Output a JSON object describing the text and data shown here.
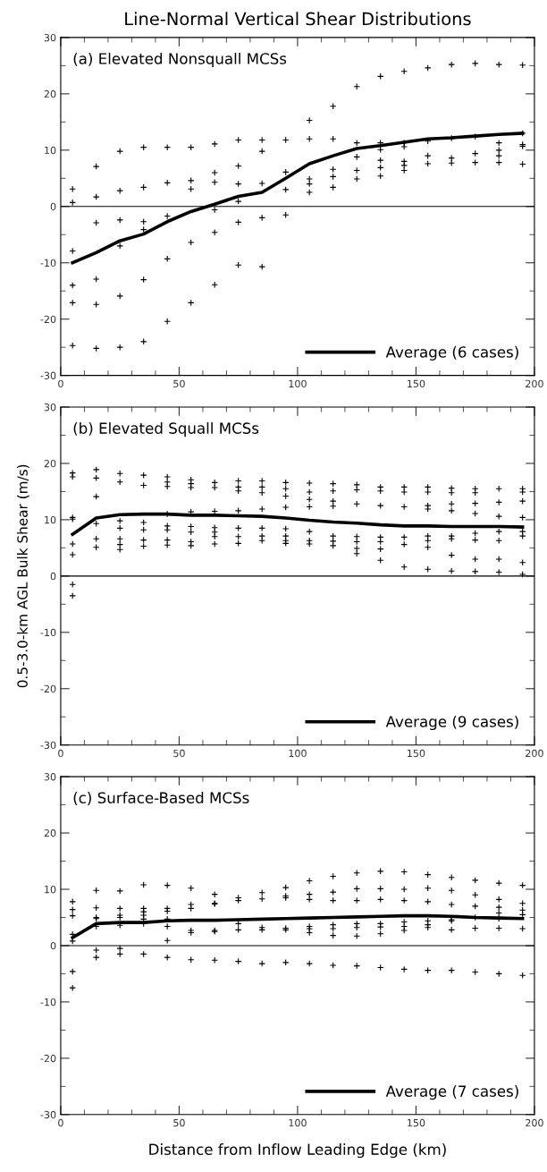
{
  "chart_data": [
    {
      "type": "scatter",
      "title": "Line-Normal Vertical Shear Distributions",
      "annotations": [
        "(a) Elevated Nonsquall MCSs"
      ],
      "xlim": [
        0,
        200
      ],
      "xticks": [
        0,
        50,
        100,
        150,
        200
      ],
      "ylim": [
        -30,
        30
      ],
      "yticks": [
        -30,
        -20,
        -10,
        0,
        10,
        20,
        30
      ],
      "grid": false,
      "legend": "bottom right",
      "ref_lines": [
        {
          "axis": "y",
          "value": 0,
          "color": "#000000"
        }
      ],
      "series": [
        {
          "color": "#000000",
          "marker": "cross",
          "x": [
            5,
            5,
            5,
            5,
            5,
            5,
            15,
            15,
            15,
            15,
            15,
            15,
            25,
            25,
            25,
            25,
            25,
            25,
            35,
            35,
            35,
            35,
            35,
            35,
            45,
            45,
            45,
            45,
            45,
            55,
            55,
            55,
            55,
            55,
            65,
            65,
            65,
            65,
            65,
            65,
            75,
            75,
            75,
            75,
            75,
            75,
            85,
            85,
            85,
            85,
            85,
            95,
            95,
            95,
            95,
            105,
            105,
            105,
            105,
            105,
            115,
            115,
            115,
            115,
            115,
            125,
            125,
            125,
            125,
            125,
            135,
            135,
            135,
            135,
            135,
            135,
            145,
            145,
            145,
            145,
            145,
            145,
            155,
            155,
            155,
            155,
            165,
            165,
            165,
            165,
            175,
            175,
            175,
            175,
            185,
            185,
            185,
            185,
            185,
            195,
            195,
            195,
            195,
            195
          ],
          "values": [
            3.1,
            0.7,
            -7.9,
            -14.0,
            -17.1,
            -24.7,
            7.1,
            1.7,
            -2.9,
            -12.9,
            -17.4,
            -25.2,
            9.8,
            2.8,
            -2.4,
            -7.0,
            -15.9,
            -25.0,
            10.5,
            3.4,
            -2.7,
            -4.1,
            -13.0,
            -24.0,
            10.5,
            4.2,
            -1.7,
            -9.3,
            -20.4,
            10.5,
            4.6,
            3.1,
            -6.4,
            -17.1,
            11.1,
            6.0,
            4.3,
            -0.6,
            -4.6,
            -13.9,
            11.8,
            7.2,
            4.0,
            0.9,
            -2.8,
            -10.4,
            11.8,
            9.8,
            4.1,
            -2.0,
            -10.7,
            11.8,
            6.1,
            3.0,
            -1.5,
            15.3,
            12.0,
            4.9,
            4.0,
            2.5,
            17.8,
            12.0,
            6.6,
            5.3,
            3.4,
            21.3,
            11.3,
            8.8,
            6.4,
            4.9,
            23.1,
            11.3,
            10.1,
            8.2,
            6.9,
            5.4,
            24.0,
            11.3,
            10.6,
            8.0,
            7.3,
            6.4,
            24.6,
            11.6,
            9.0,
            7.6,
            25.2,
            12.1,
            8.6,
            7.7,
            25.4,
            12.4,
            9.4,
            7.8,
            25.2,
            11.3,
            10.0,
            9.0,
            7.8,
            25.1,
            13.0,
            11.0,
            10.7,
            7.5
          ]
        },
        {
          "type": "line",
          "name": "Average (6 cases)",
          "color": "#000000",
          "line_style": "solid",
          "x": [
            5,
            15,
            25,
            35,
            45,
            55,
            65,
            75,
            85,
            95,
            105,
            115,
            125,
            135,
            145,
            155,
            165,
            175,
            185,
            195
          ],
          "values": [
            -10.0,
            -8.2,
            -6.1,
            -4.9,
            -2.7,
            -0.9,
            0.4,
            1.8,
            2.5,
            5.0,
            7.6,
            9.0,
            10.3,
            10.8,
            11.4,
            12.0,
            12.2,
            12.5,
            12.8,
            13.0
          ]
        }
      ]
    },
    {
      "type": "scatter",
      "ylabel": "0.5-3.0-km AGL Bulk Shear (m/s)",
      "annotations": [
        "(b) Elevated Squall MCSs"
      ],
      "xlim": [
        0,
        200
      ],
      "xticks": [
        0,
        50,
        100,
        150,
        200
      ],
      "ylim": [
        -30,
        30
      ],
      "yticks": [
        -30,
        -20,
        -10,
        0,
        10,
        20,
        30
      ],
      "grid": false,
      "legend": "bottom right",
      "ref_lines": [
        {
          "axis": "y",
          "value": 0,
          "color": "#000000"
        }
      ],
      "series": [
        {
          "color": "#000000",
          "marker": "cross",
          "x": [
            5,
            5,
            5,
            5,
            5,
            5,
            5,
            5,
            15,
            15,
            15,
            15,
            15,
            15,
            25,
            25,
            25,
            25,
            25,
            25,
            25,
            35,
            35,
            35,
            35,
            35,
            35,
            45,
            45,
            45,
            45,
            45,
            45,
            45,
            45,
            55,
            55,
            55,
            55,
            55,
            55,
            55,
            55,
            65,
            65,
            65,
            65,
            65,
            65,
            65,
            75,
            75,
            75,
            75,
            75,
            75,
            75,
            85,
            85,
            85,
            85,
            85,
            85,
            85,
            95,
            95,
            95,
            95,
            95,
            95,
            95,
            95,
            105,
            105,
            105,
            105,
            105,
            105,
            105,
            115,
            115,
            115,
            115,
            115,
            115,
            115,
            125,
            125,
            125,
            125,
            125,
            125,
            125,
            135,
            135,
            135,
            135,
            135,
            135,
            135,
            145,
            145,
            145,
            145,
            145,
            145,
            155,
            155,
            155,
            155,
            155,
            155,
            155,
            155,
            165,
            165,
            165,
            165,
            165,
            165,
            165,
            165,
            175,
            175,
            175,
            175,
            175,
            175,
            175,
            175,
            185,
            185,
            185,
            185,
            185,
            185,
            185,
            195,
            195,
            195,
            195,
            195,
            195,
            195,
            195
          ],
          "values": [
            18.3,
            17.6,
            10.4,
            10.1,
            5.7,
            3.8,
            -1.5,
            -3.5,
            18.9,
            17.4,
            14.1,
            9.3,
            6.6,
            5.1,
            18.2,
            16.7,
            9.8,
            8.5,
            6.6,
            5.6,
            4.7,
            17.9,
            16.1,
            9.5,
            8.2,
            6.4,
            5.3,
            17.6,
            16.7,
            15.9,
            11.0,
            8.9,
            8.2,
            6.4,
            5.5,
            17.1,
            16.4,
            15.7,
            11.4,
            8.8,
            7.8,
            6.1,
            5.4,
            16.6,
            15.7,
            11.5,
            8.6,
            7.8,
            7.0,
            5.7,
            16.9,
            15.8,
            15.1,
            11.6,
            8.5,
            7.0,
            5.8,
            16.9,
            15.8,
            14.8,
            11.9,
            8.5,
            7.1,
            6.3,
            16.6,
            15.5,
            14.2,
            12.2,
            8.4,
            7.1,
            6.3,
            5.8,
            16.5,
            14.9,
            13.6,
            12.3,
            7.9,
            6.3,
            5.7,
            16.4,
            15.1,
            13.3,
            12.4,
            7.1,
            6.2,
            5.4,
            16.2,
            15.3,
            12.8,
            7.0,
            6.1,
            4.9,
            4.0,
            15.8,
            15.1,
            12.5,
            6.9,
            6.1,
            4.8,
            2.8,
            15.8,
            14.9,
            12.3,
            6.9,
            5.6,
            1.6,
            15.8,
            14.9,
            12.5,
            11.9,
            7.1,
            6.3,
            5.1,
            1.2,
            15.6,
            14.8,
            12.8,
            11.6,
            7.1,
            6.6,
            3.7,
            0.9,
            15.5,
            14.8,
            12.9,
            11.1,
            7.6,
            6.4,
            3.0,
            0.8,
            15.5,
            13.1,
            10.6,
            7.9,
            6.3,
            3.0,
            0.7,
            15.5,
            14.9,
            13.3,
            10.4,
            7.9,
            7.1,
            2.4,
            0.3
          ]
        },
        {
          "type": "line",
          "name": "Average (9 cases)",
          "color": "#000000",
          "line_style": "solid",
          "x": [
            5,
            15,
            25,
            35,
            45,
            55,
            65,
            75,
            85,
            95,
            105,
            115,
            125,
            135,
            145,
            155,
            165,
            175,
            185,
            195
          ],
          "values": [
            7.4,
            10.3,
            10.9,
            11.0,
            11.0,
            10.8,
            10.8,
            10.7,
            10.6,
            10.3,
            9.9,
            9.6,
            9.4,
            9.1,
            8.9,
            8.9,
            8.8,
            8.8,
            8.8,
            8.7
          ]
        }
      ]
    },
    {
      "type": "scatter",
      "xlabel": "Distance from Inflow Leading Edge (km)",
      "annotations": [
        "(c) Surface-Based MCSs"
      ],
      "xlim": [
        0,
        200
      ],
      "xticks": [
        0,
        50,
        100,
        150,
        200
      ],
      "ylim": [
        -30,
        30
      ],
      "yticks": [
        -30,
        -20,
        -10,
        0,
        10,
        20,
        30
      ],
      "grid": false,
      "legend": "bottom right",
      "ref_lines": [
        {
          "axis": "y",
          "value": 0,
          "color": "#000000"
        }
      ],
      "series": [
        {
          "color": "#000000",
          "marker": "cross",
          "x": [
            5,
            5,
            5,
            5,
            5,
            5,
            5,
            15,
            15,
            15,
            15,
            15,
            15,
            15,
            25,
            25,
            25,
            25,
            25,
            25,
            25,
            35,
            35,
            35,
            35,
            35,
            35,
            35,
            45,
            45,
            45,
            45,
            45,
            45,
            45,
            55,
            55,
            55,
            55,
            55,
            55,
            65,
            65,
            65,
            65,
            65,
            65,
            75,
            75,
            75,
            75,
            75,
            85,
            85,
            85,
            85,
            85,
            95,
            95,
            95,
            95,
            95,
            95,
            105,
            105,
            105,
            105,
            105,
            105,
            105,
            115,
            115,
            115,
            115,
            115,
            115,
            115,
            125,
            125,
            125,
            125,
            125,
            125,
            125,
            135,
            135,
            135,
            135,
            135,
            135,
            135,
            145,
            145,
            145,
            145,
            145,
            145,
            145,
            155,
            155,
            155,
            155,
            155,
            155,
            155,
            165,
            165,
            165,
            165,
            165,
            165,
            165,
            175,
            175,
            175,
            175,
            175,
            175,
            185,
            185,
            185,
            185,
            185,
            185,
            185,
            195,
            195,
            195,
            195,
            195,
            195
          ],
          "values": [
            7.8,
            6.4,
            5.3,
            2.0,
            0.8,
            -4.6,
            -7.5,
            9.8,
            6.7,
            5.0,
            4.8,
            3.4,
            -0.8,
            -2.1,
            9.7,
            6.6,
            5.4,
            5.0,
            3.6,
            -0.5,
            -1.5,
            10.8,
            6.6,
            6.0,
            5.4,
            4.7,
            3.9,
            -1.5,
            10.7,
            6.6,
            6.1,
            4.7,
            3.4,
            0.9,
            -2.1,
            10.2,
            7.3,
            6.6,
            2.7,
            2.3,
            -2.5,
            9.1,
            7.5,
            7.4,
            2.7,
            2.5,
            -2.6,
            8.5,
            8.0,
            3.9,
            2.8,
            -2.8,
            9.4,
            8.3,
            3.2,
            2.8,
            -3.2,
            10.3,
            8.8,
            8.5,
            3.1,
            2.8,
            -3.0,
            11.5,
            9.1,
            8.2,
            3.4,
            3.0,
            2.3,
            -3.2,
            12.3,
            9.5,
            8.0,
            3.7,
            3.0,
            1.8,
            -3.5,
            12.9,
            10.1,
            8.0,
            3.9,
            3.2,
            1.7,
            -3.6,
            13.2,
            10.1,
            8.2,
            3.9,
            3.3,
            2.1,
            -3.9,
            13.1,
            10.0,
            8.0,
            4.2,
            3.4,
            2.7,
            -4.2,
            12.6,
            10.2,
            7.8,
            4.4,
            3.7,
            3.2,
            -4.4,
            12.1,
            9.8,
            7.3,
            4.6,
            4.4,
            2.8,
            -4.4,
            11.6,
            9.0,
            7.0,
            5.0,
            3.1,
            -4.7,
            11.1,
            8.2,
            6.8,
            5.8,
            4.8,
            3.1,
            -5.0,
            10.7,
            7.5,
            6.3,
            5.5,
            3.0,
            -5.3
          ]
        },
        {
          "type": "line",
          "name": "Average (7 cases)",
          "color": "#000000",
          "line_style": "solid",
          "x": [
            5,
            15,
            25,
            35,
            45,
            55,
            65,
            75,
            85,
            95,
            105,
            115,
            125,
            135,
            145,
            155,
            165,
            175,
            185,
            195
          ],
          "values": [
            1.4,
            3.9,
            4.1,
            4.1,
            4.4,
            4.5,
            4.5,
            4.6,
            4.7,
            4.8,
            4.9,
            5.0,
            5.1,
            5.2,
            5.3,
            5.3,
            5.2,
            5.0,
            4.9,
            4.8
          ]
        }
      ]
    }
  ]
}
